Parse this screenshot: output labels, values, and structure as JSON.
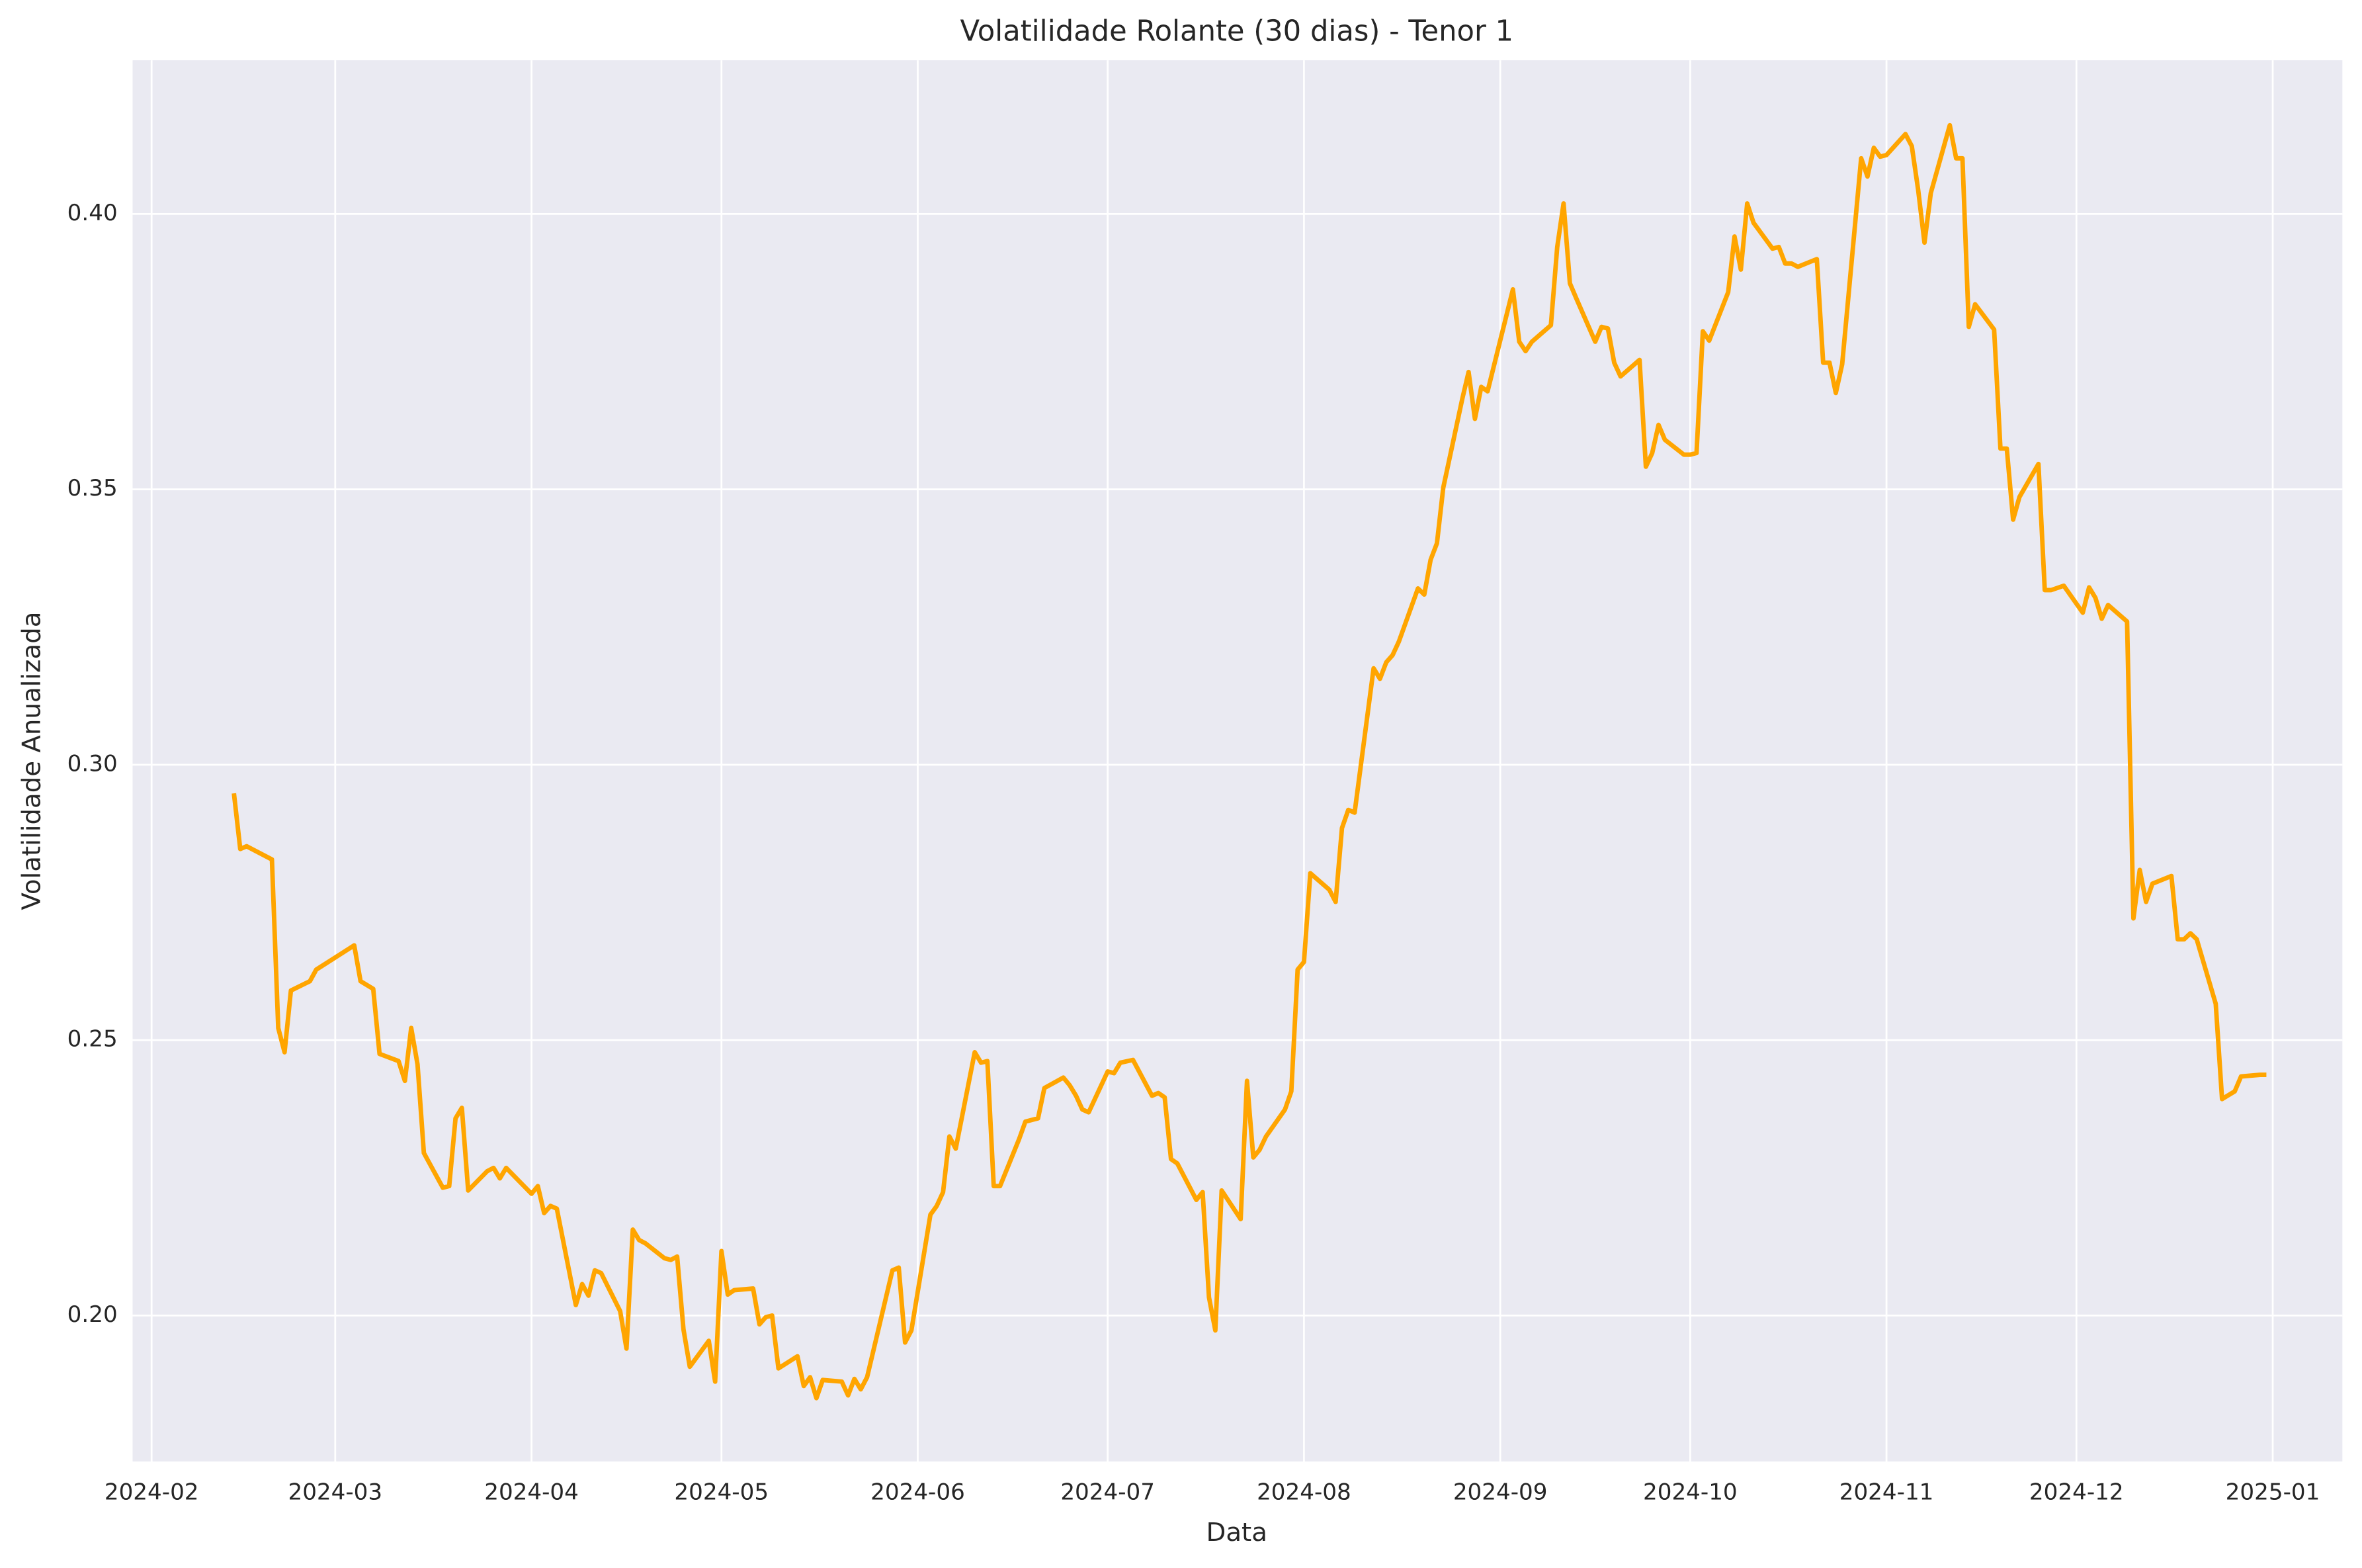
{
  "chart_data": {
    "type": "line",
    "title": "Volatilidade Rolante (30 dias) - Tenor 1",
    "xlabel": "Data",
    "ylabel": "Volatilidade Anualizada",
    "grid": true,
    "xlim": [
      "2024-01-29",
      "2025-01-12"
    ],
    "ylim": [
      0.1735,
      0.4279
    ],
    "xticks": [
      {
        "value": "2024-02-01",
        "label": "2024-02"
      },
      {
        "value": "2024-03-01",
        "label": "2024-03"
      },
      {
        "value": "2024-04-01",
        "label": "2024-04"
      },
      {
        "value": "2024-05-01",
        "label": "2024-05"
      },
      {
        "value": "2024-06-01",
        "label": "2024-06"
      },
      {
        "value": "2024-07-01",
        "label": "2024-07"
      },
      {
        "value": "2024-08-01",
        "label": "2024-08"
      },
      {
        "value": "2024-09-01",
        "label": "2024-09"
      },
      {
        "value": "2024-10-01",
        "label": "2024-10"
      },
      {
        "value": "2024-11-01",
        "label": "2024-11"
      },
      {
        "value": "2024-12-01",
        "label": "2024-12"
      },
      {
        "value": "2025-01-01",
        "label": "2025-01"
      }
    ],
    "yticks": [
      {
        "value": 0.2,
        "label": "0.20"
      },
      {
        "value": 0.25,
        "label": "0.25"
      },
      {
        "value": 0.3,
        "label": "0.30"
      },
      {
        "value": 0.35,
        "label": "0.35"
      },
      {
        "value": 0.4,
        "label": "0.40"
      }
    ],
    "x": [
      "2024-02-14",
      "2024-02-15",
      "2024-02-16",
      "2024-02-20",
      "2024-02-21",
      "2024-02-22",
      "2024-02-23",
      "2024-02-26",
      "2024-02-27",
      "2024-03-01",
      "2024-03-04",
      "2024-03-05",
      "2024-03-07",
      "2024-03-08",
      "2024-03-11",
      "2024-03-12",
      "2024-03-13",
      "2024-03-14",
      "2024-03-15",
      "2024-03-18",
      "2024-03-19",
      "2024-03-20",
      "2024-03-21",
      "2024-03-22",
      "2024-03-25",
      "2024-03-26",
      "2024-03-27",
      "2024-03-28",
      "2024-04-01",
      "2024-04-02",
      "2024-04-03",
      "2024-04-04",
      "2024-04-05",
      "2024-04-08",
      "2024-04-09",
      "2024-04-10",
      "2024-04-11",
      "2024-04-12",
      "2024-04-15",
      "2024-04-16",
      "2024-04-17",
      "2024-04-18",
      "2024-04-19",
      "2024-04-22",
      "2024-04-23",
      "2024-04-24",
      "2024-04-25",
      "2024-04-26",
      "2024-04-29",
      "2024-04-30",
      "2024-05-01",
      "2024-05-02",
      "2024-05-03",
      "2024-05-06",
      "2024-05-07",
      "2024-05-08",
      "2024-05-09",
      "2024-05-10",
      "2024-05-13",
      "2024-05-14",
      "2024-05-15",
      "2024-05-16",
      "2024-05-17",
      "2024-05-20",
      "2024-05-21",
      "2024-05-22",
      "2024-05-23",
      "2024-05-24",
      "2024-05-28",
      "2024-05-29",
      "2024-05-30",
      "2024-05-31",
      "2024-06-03",
      "2024-06-04",
      "2024-06-05",
      "2024-06-06",
      "2024-06-07",
      "2024-06-10",
      "2024-06-11",
      "2024-06-12",
      "2024-06-13",
      "2024-06-14",
      "2024-06-17",
      "2024-06-18",
      "2024-06-20",
      "2024-06-21",
      "2024-06-24",
      "2024-06-25",
      "2024-06-26",
      "2024-06-27",
      "2024-06-28",
      "2024-07-01",
      "2024-07-02",
      "2024-07-03",
      "2024-07-05",
      "2024-07-08",
      "2024-07-09",
      "2024-07-10",
      "2024-07-11",
      "2024-07-12",
      "2024-07-15",
      "2024-07-16",
      "2024-07-17",
      "2024-07-18",
      "2024-07-19",
      "2024-07-22",
      "2024-07-23",
      "2024-07-24",
      "2024-07-25",
      "2024-07-26",
      "2024-07-29",
      "2024-07-30",
      "2024-07-31",
      "2024-08-01",
      "2024-08-02",
      "2024-08-05",
      "2024-08-06",
      "2024-08-07",
      "2024-08-08",
      "2024-08-09",
      "2024-08-12",
      "2024-08-13",
      "2024-08-14",
      "2024-08-15",
      "2024-08-16",
      "2024-08-19",
      "2024-08-20",
      "2024-08-21",
      "2024-08-22",
      "2024-08-23",
      "2024-08-26",
      "2024-08-27",
      "2024-08-28",
      "2024-08-29",
      "2024-08-30",
      "2024-09-03",
      "2024-09-04",
      "2024-09-05",
      "2024-09-06",
      "2024-09-09",
      "2024-09-10",
      "2024-09-11",
      "2024-09-12",
      "2024-09-13",
      "2024-09-16",
      "2024-09-17",
      "2024-09-18",
      "2024-09-19",
      "2024-09-20",
      "2024-09-23",
      "2024-09-24",
      "2024-09-25",
      "2024-09-26",
      "2024-09-27",
      "2024-09-30",
      "2024-10-01",
      "2024-10-02",
      "2024-10-03",
      "2024-10-04",
      "2024-10-07",
      "2024-10-08",
      "2024-10-09",
      "2024-10-10",
      "2024-10-11",
      "2024-10-14",
      "2024-10-15",
      "2024-10-16",
      "2024-10-17",
      "2024-10-18",
      "2024-10-21",
      "2024-10-22",
      "2024-10-23",
      "2024-10-24",
      "2024-10-25",
      "2024-10-28",
      "2024-10-29",
      "2024-10-30",
      "2024-10-31",
      "2024-11-01",
      "2024-11-04",
      "2024-11-05",
      "2024-11-06",
      "2024-11-07",
      "2024-11-08",
      "2024-11-11",
      "2024-11-12",
      "2024-11-13",
      "2024-11-14",
      "2024-11-15",
      "2024-11-18",
      "2024-11-19",
      "2024-11-20",
      "2024-11-21",
      "2024-11-22",
      "2024-11-25",
      "2024-11-26",
      "2024-11-27",
      "2024-11-29",
      "2024-12-02",
      "2024-12-03",
      "2024-12-04",
      "2024-12-05",
      "2024-12-06",
      "2024-12-09",
      "2024-12-10",
      "2024-12-11",
      "2024-12-12",
      "2024-12-13",
      "2024-12-16",
      "2024-12-17",
      "2024-12-18",
      "2024-12-19",
      "2024-12-20",
      "2024-12-23",
      "2024-12-24",
      "2024-12-26",
      "2024-12-27",
      "2024-12-30",
      "2024-12-31"
    ],
    "series": [
      {
        "color": "#ffa500",
        "values": [
          0.2948,
          0.2847,
          0.2852,
          0.2828,
          0.2522,
          0.2478,
          0.259,
          0.2607,
          0.2628,
          0.265,
          0.2672,
          0.2607,
          0.2593,
          0.2475,
          0.2462,
          0.2426,
          0.2522,
          0.2456,
          0.2295,
          0.2232,
          0.2235,
          0.2358,
          0.2377,
          0.2227,
          0.2262,
          0.2268,
          0.2249,
          0.2268,
          0.2221,
          0.2235,
          0.2186,
          0.2199,
          0.2194,
          0.2019,
          0.2057,
          0.2036,
          0.2082,
          0.2077,
          0.2008,
          0.194,
          0.2156,
          0.2137,
          0.2131,
          0.2104,
          0.2101,
          0.2107,
          0.1975,
          0.1907,
          0.1954,
          0.188,
          0.2117,
          0.2038,
          0.2046,
          0.2049,
          0.1984,
          0.1997,
          0.2,
          0.1904,
          0.1926,
          0.1872,
          0.1888,
          0.185,
          0.1883,
          0.188,
          0.1855,
          0.1885,
          0.1866,
          0.1888,
          0.2082,
          0.2087,
          0.1951,
          0.1973,
          0.2183,
          0.2199,
          0.2224,
          0.2325,
          0.2303,
          0.2478,
          0.2459,
          0.2462,
          0.2235,
          0.2235,
          0.232,
          0.2352,
          0.2358,
          0.2413,
          0.2432,
          0.2418,
          0.2399,
          0.2374,
          0.2369,
          0.2443,
          0.244,
          0.2459,
          0.2464,
          0.2399,
          0.2404,
          0.2396,
          0.2284,
          0.2276,
          0.221,
          0.2224,
          0.2033,
          0.1973,
          0.2227,
          0.2175,
          0.2426,
          0.2287,
          0.2301,
          0.2325,
          0.2374,
          0.2407,
          0.2628,
          0.2642,
          0.2803,
          0.2773,
          0.2751,
          0.2885,
          0.2918,
          0.2913,
          0.3175,
          0.3156,
          0.3186,
          0.3199,
          0.3224,
          0.332,
          0.3309,
          0.3372,
          0.3402,
          0.3503,
          0.3664,
          0.3713,
          0.3628,
          0.3686,
          0.3678,
          0.3863,
          0.3768,
          0.3751,
          0.3768,
          0.3798,
          0.394,
          0.4019,
          0.3874,
          0.3847,
          0.3768,
          0.3795,
          0.3792,
          0.373,
          0.3705,
          0.3735,
          0.3541,
          0.3566,
          0.3617,
          0.359,
          0.3563,
          0.3563,
          0.3566,
          0.3787,
          0.377,
          0.3858,
          0.3959,
          0.3899,
          0.4019,
          0.3984,
          0.3937,
          0.394,
          0.391,
          0.391,
          0.3904,
          0.3918,
          0.373,
          0.373,
          0.3675,
          0.3727,
          0.4101,
          0.4068,
          0.412,
          0.4104,
          0.4107,
          0.4145,
          0.4123,
          0.4044,
          0.3948,
          0.4038,
          0.4161,
          0.4101,
          0.4101,
          0.3795,
          0.3836,
          0.379,
          0.3574,
          0.3574,
          0.3445,
          0.3486,
          0.3546,
          0.3317,
          0.3317,
          0.3325,
          0.3276,
          0.3322,
          0.3303,
          0.3265,
          0.329,
          0.326,
          0.2721,
          0.2809,
          0.2751,
          0.2784,
          0.2798,
          0.2683,
          0.2683,
          0.2694,
          0.2683,
          0.2566,
          0.2393,
          0.2407,
          0.2434,
          0.2437,
          0.2437
        ]
      }
    ]
  }
}
